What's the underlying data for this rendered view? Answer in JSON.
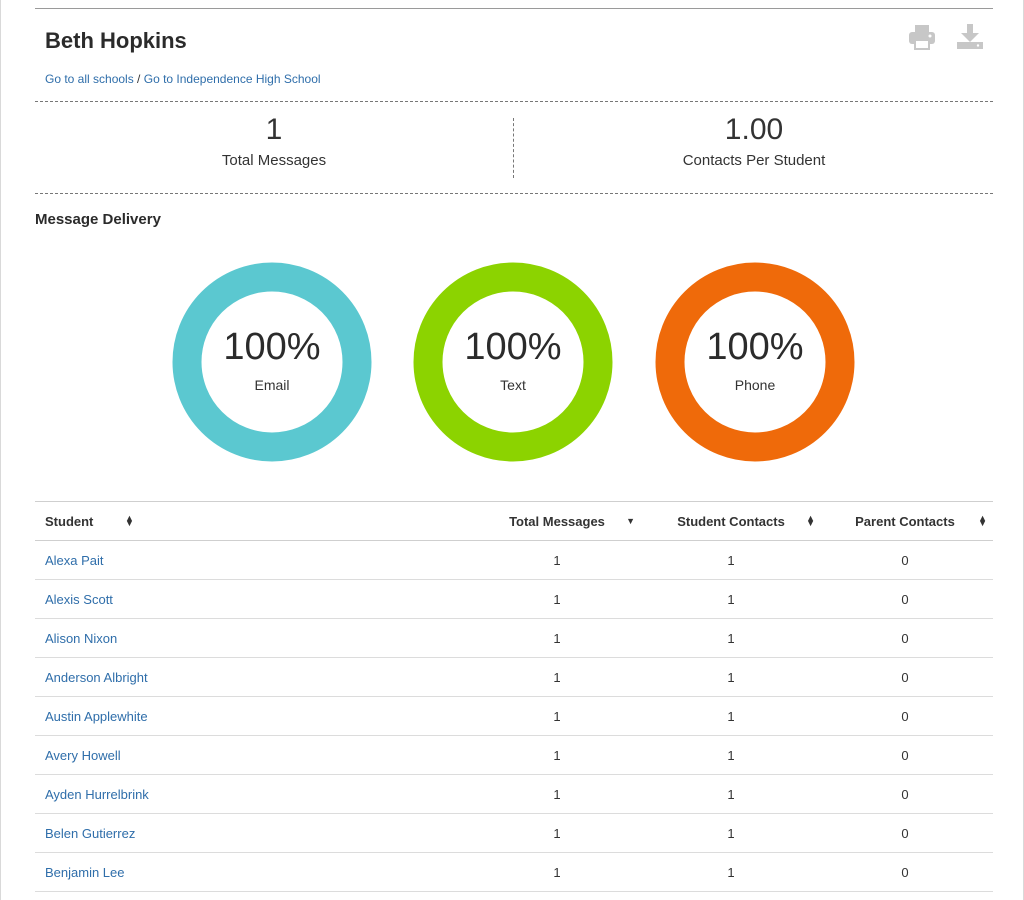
{
  "header": {
    "name": "Beth Hopkins",
    "breadcrumb": {
      "link1": "Go to all schools",
      "separator": " / ",
      "link2": "Go to Independence High School"
    },
    "icons": [
      "print-icon",
      "download-icon"
    ]
  },
  "stats": {
    "total_messages": {
      "value": "1",
      "label": "Total Messages"
    },
    "contacts_per_student": {
      "value": "1.00",
      "label": "Contacts Per Student"
    }
  },
  "delivery": {
    "title": "Message Delivery",
    "donuts": [
      {
        "pct": "100%",
        "label": "Email",
        "color": "#5bc8d0",
        "fraction": 1.0
      },
      {
        "pct": "100%",
        "label": "Text",
        "color": "#8cd300",
        "fraction": 1.0
      },
      {
        "pct": "100%",
        "label": "Phone",
        "color": "#ef6a0a",
        "fraction": 1.0
      }
    ]
  },
  "table": {
    "headers": [
      "Student",
      "Total Messages",
      "Student Contacts",
      "Parent Contacts"
    ],
    "sort_icons": [
      "sort-both-icon",
      "sort-desc-icon",
      "sort-both-icon",
      "sort-both-icon"
    ],
    "rows": [
      {
        "student": "Alexa Pait",
        "total": "1",
        "student_contacts": "1",
        "parent_contacts": "0"
      },
      {
        "student": "Alexis Scott",
        "total": "1",
        "student_contacts": "1",
        "parent_contacts": "0"
      },
      {
        "student": "Alison Nixon",
        "total": "1",
        "student_contacts": "1",
        "parent_contacts": "0"
      },
      {
        "student": "Anderson Albright",
        "total": "1",
        "student_contacts": "1",
        "parent_contacts": "0"
      },
      {
        "student": "Austin Applewhite",
        "total": "1",
        "student_contacts": "1",
        "parent_contacts": "0"
      },
      {
        "student": "Avery Howell",
        "total": "1",
        "student_contacts": "1",
        "parent_contacts": "0"
      },
      {
        "student": "Ayden Hurrelbrink",
        "total": "1",
        "student_contacts": "1",
        "parent_contacts": "0"
      },
      {
        "student": "Belen Gutierrez",
        "total": "1",
        "student_contacts": "1",
        "parent_contacts": "0"
      },
      {
        "student": "Benjamin Lee",
        "total": "1",
        "student_contacts": "1",
        "parent_contacts": "0"
      }
    ]
  }
}
